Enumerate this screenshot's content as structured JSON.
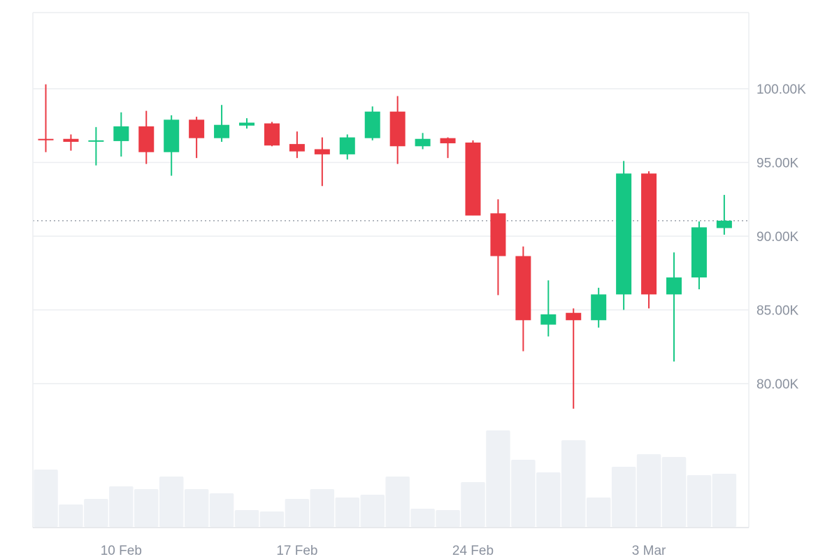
{
  "colors": {
    "up": "#16c784",
    "down": "#ea3943",
    "volume": "#eef1f5",
    "grid": "#eceef1",
    "reference_line": "#9aa1ab",
    "axis_text": "#8a919e"
  },
  "chart_data": {
    "type": "candlestick",
    "title": "",
    "xlabel": "",
    "ylabel": "",
    "ylim": [
      75000,
      105000
    ],
    "y_ticks": [
      {
        "value": 80000,
        "label": "80.00K"
      },
      {
        "value": 85000,
        "label": "85.00K"
      },
      {
        "value": 90000,
        "label": "90.00K"
      },
      {
        "value": 95000,
        "label": "95.00K"
      },
      {
        "value": 100000,
        "label": "100.00K"
      }
    ],
    "x_ticks": [
      {
        "index": 3,
        "label": "10 Feb"
      },
      {
        "index": 10,
        "label": "17 Feb"
      },
      {
        "index": 17,
        "label": "24 Feb"
      },
      {
        "index": 24,
        "label": "3 Mar"
      }
    ],
    "reference_price": 91050,
    "grid": true,
    "volume_unit": "relative",
    "candles": [
      {
        "date": "7 Feb",
        "open": 96600,
        "high": 100300,
        "low": 95700,
        "close": 96550,
        "volume": 82
      },
      {
        "date": "8 Feb",
        "open": 96600,
        "high": 96900,
        "low": 95800,
        "close": 96400,
        "volume": 32
      },
      {
        "date": "9 Feb",
        "open": 96450,
        "high": 97400,
        "low": 94800,
        "close": 96500,
        "volume": 40
      },
      {
        "date": "10 Feb",
        "open": 96450,
        "high": 98400,
        "low": 95400,
        "close": 97450,
        "volume": 58
      },
      {
        "date": "11 Feb",
        "open": 97450,
        "high": 98500,
        "low": 94900,
        "close": 95700,
        "volume": 54
      },
      {
        "date": "12 Feb",
        "open": 95700,
        "high": 98200,
        "low": 94100,
        "close": 97900,
        "volume": 72
      },
      {
        "date": "13 Feb",
        "open": 97900,
        "high": 98100,
        "low": 95300,
        "close": 96650,
        "volume": 54
      },
      {
        "date": "14 Feb",
        "open": 96650,
        "high": 98900,
        "low": 96400,
        "close": 97550,
        "volume": 48
      },
      {
        "date": "15 Feb",
        "open": 97500,
        "high": 98000,
        "low": 97300,
        "close": 97700,
        "volume": 24
      },
      {
        "date": "16 Feb",
        "open": 97650,
        "high": 97750,
        "low": 96100,
        "close": 96150,
        "volume": 22
      },
      {
        "date": "17 Feb",
        "open": 96250,
        "high": 97100,
        "low": 95300,
        "close": 95750,
        "volume": 40
      },
      {
        "date": "18 Feb",
        "open": 95900,
        "high": 96700,
        "low": 93400,
        "close": 95550,
        "volume": 54
      },
      {
        "date": "19 Feb",
        "open": 95550,
        "high": 96900,
        "low": 95200,
        "close": 96700,
        "volume": 42
      },
      {
        "date": "20 Feb",
        "open": 96650,
        "high": 98800,
        "low": 96500,
        "close": 98450,
        "volume": 46
      },
      {
        "date": "21 Feb",
        "open": 98450,
        "high": 99500,
        "low": 94900,
        "close": 96100,
        "volume": 72
      },
      {
        "date": "22 Feb",
        "open": 96100,
        "high": 97000,
        "low": 95900,
        "close": 96600,
        "volume": 26
      },
      {
        "date": "23 Feb",
        "open": 96650,
        "high": 96700,
        "low": 95300,
        "close": 96300,
        "volume": 24
      },
      {
        "date": "24 Feb",
        "open": 96350,
        "high": 96500,
        "low": 91400,
        "close": 91400,
        "volume": 64
      },
      {
        "date": "25 Feb",
        "open": 91550,
        "high": 92500,
        "low": 86000,
        "close": 88650,
        "volume": 138
      },
      {
        "date": "26 Feb",
        "open": 88650,
        "high": 89300,
        "low": 82200,
        "close": 84300,
        "volume": 96
      },
      {
        "date": "27 Feb",
        "open": 84000,
        "high": 87000,
        "low": 83200,
        "close": 84700,
        "volume": 78
      },
      {
        "date": "28 Feb",
        "open": 84800,
        "high": 85100,
        "low": 78300,
        "close": 84300,
        "volume": 124
      },
      {
        "date": "1 Mar",
        "open": 84300,
        "high": 86500,
        "low": 83800,
        "close": 86050,
        "volume": 42
      },
      {
        "date": "2 Mar",
        "open": 86050,
        "high": 95100,
        "low": 85000,
        "close": 94250,
        "volume": 86
      },
      {
        "date": "3 Mar",
        "open": 94250,
        "high": 94400,
        "low": 85100,
        "close": 86050,
        "volume": 104
      },
      {
        "date": "4 Mar",
        "open": 86050,
        "high": 88900,
        "low": 81500,
        "close": 87200,
        "volume": 100
      },
      {
        "date": "5 Mar",
        "open": 87200,
        "high": 91000,
        "low": 86400,
        "close": 90600,
        "volume": 74
      },
      {
        "date": "6 Mar",
        "open": 90550,
        "high": 92800,
        "low": 90100,
        "close": 91050,
        "volume": 76
      }
    ]
  }
}
